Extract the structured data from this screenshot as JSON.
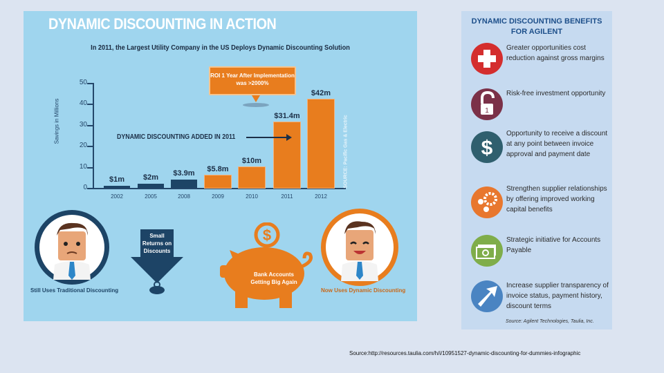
{
  "infographic_left": {
    "title": "DYNAMIC DISCOUNTING IN ACTION",
    "subtitle": "In 2011, the Largest Utility Company in the US Deploys Dynamic Discounting Solution",
    "callout": "ROI 1 Year After Implementation was >2000%",
    "annotation": "DYNAMIC DISCOUNTING ADDED IN 2011",
    "vertical_source": "SOURCE: Pacific Gas & Electric",
    "left_caption": "Still Uses Traditional Discounting",
    "arrow_text": "Small Returns on Discounts",
    "piggy_text": "Bank Accounts Getting Big Again",
    "right_caption": "Now Uses Dynamic Discounting",
    "colors": {
      "background": "#9fd5ee",
      "navy": "#1d4466",
      "orange": "#e87d1e"
    }
  },
  "chart_data": {
    "type": "bar",
    "title": "In 2011, the Largest Utility Company in the US Deploys Dynamic Discounting Solution",
    "xlabel": "",
    "ylabel": "Savings in Millions",
    "ylim": [
      0,
      50
    ],
    "yticks": [
      0,
      10,
      20,
      30,
      40,
      50
    ],
    "categories": [
      "2002",
      "2005",
      "2008",
      "2009",
      "2010",
      "2011",
      "2012"
    ],
    "values": [
      1,
      2,
      3.9,
      5.8,
      10,
      31.4,
      42
    ],
    "value_labels": [
      "$1m",
      "$2m",
      "$3.9m",
      "$5.8m",
      "$10m",
      "$31.4m",
      "$42m"
    ],
    "bar_colors": [
      "#1d4466",
      "#1d4466",
      "#1d4466",
      "#e87d1e",
      "#e87d1e",
      "#e87d1e",
      "#e87d1e"
    ],
    "annotations": [
      "DYNAMIC DISCOUNTING ADDED IN 2011",
      "ROI 1 Year After Implementation was >2000%"
    ],
    "grid": false,
    "legend": null
  },
  "benefits_panel": {
    "title_line1": "DYNAMIC DISCOUNTING BENEFITS",
    "title_line2": "FOR AGILENT",
    "items": [
      {
        "icon": "cross-icon",
        "color": "#d42e2e",
        "text": "Greater opportunities cost reduction against gross margins"
      },
      {
        "icon": "unlocked-padlock-icon",
        "color": "#7b3148",
        "text": "Risk-free investment opportunity"
      },
      {
        "icon": "dollar-icon",
        "color": "#2f5f6e",
        "text": "Opportunity to receive a discount at any point between invoice approval and payment date"
      },
      {
        "icon": "gears-icon",
        "color": "#e8772e",
        "text": "Strengthen supplier relationships by offering improved working capital benefits"
      },
      {
        "icon": "cash-icon",
        "color": "#7fad4a",
        "text": "Strategic initiative for Accounts Payable"
      },
      {
        "icon": "arrow-up-right-icon",
        "color": "#4a84c2",
        "text": "Increase supplier transparency of invoice status, payment history, discount terms"
      }
    ],
    "source": "Source: Agilent Technologies, Taulia, Inc."
  },
  "footer": {
    "source": "Source:http://resources.taulia.com/h/i/10951527-dynamic-discounting-for-dummies-infographic"
  }
}
